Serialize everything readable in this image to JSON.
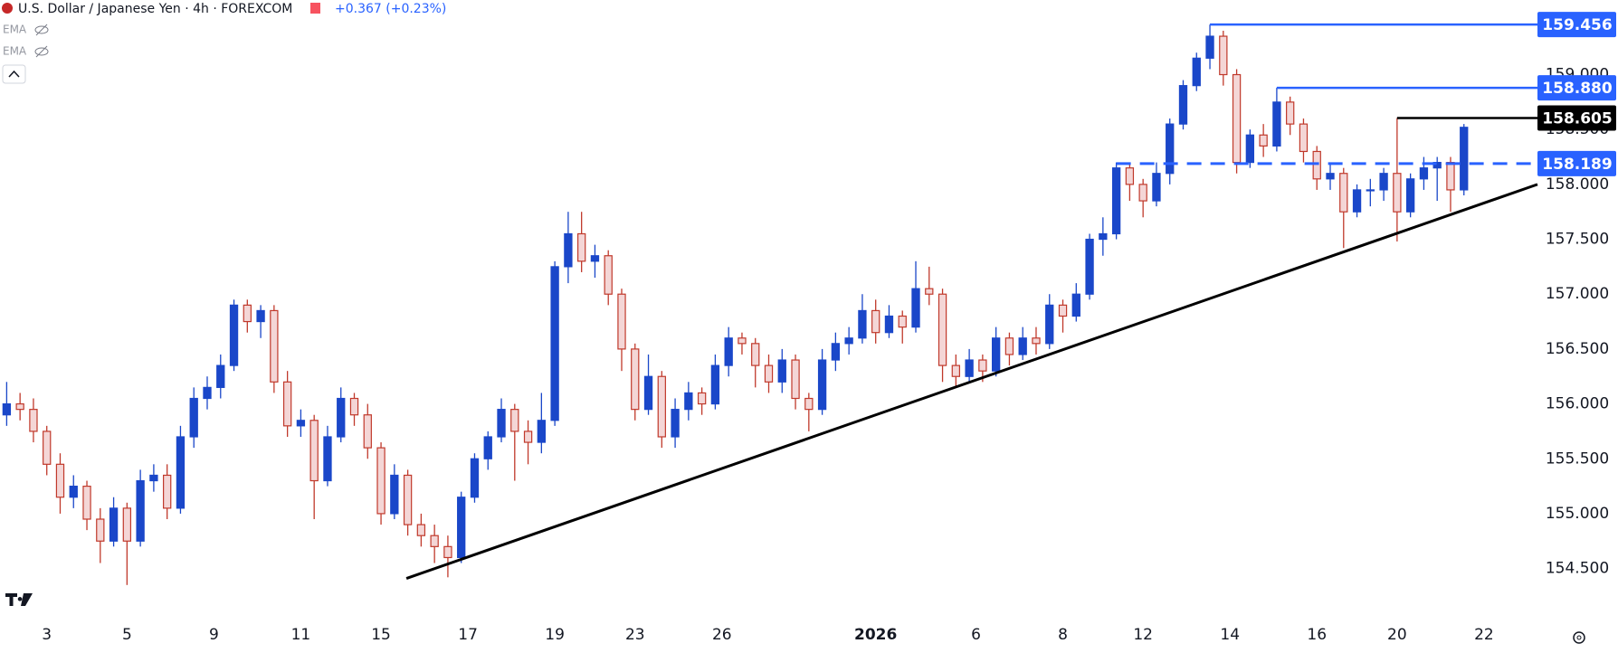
{
  "chart_data": {
    "type": "candlestick",
    "title": "U.S. Dollar / Japanese Yen · 4h · FOREXCOM",
    "change": "+0.367 (+0.23%)",
    "indicators": [
      "EMA",
      "EMA"
    ],
    "up_color": "#1a47c9",
    "down_color": "#c0392b",
    "down_fill": "#f4d6d6",
    "xlim": [
      -0.5,
      114.5
    ],
    "xticks": [
      {
        "value": 3,
        "label": "3"
      },
      {
        "value": 9,
        "label": "5"
      },
      {
        "value": 15.5,
        "label": "9"
      },
      {
        "value": 22,
        "label": "11"
      },
      {
        "value": 28,
        "label": "15"
      },
      {
        "value": 34.5,
        "label": "17"
      },
      {
        "value": 41,
        "label": "19"
      },
      {
        "value": 47,
        "label": "23"
      },
      {
        "value": 53.5,
        "label": "26"
      },
      {
        "value": 65,
        "label": "2026"
      },
      {
        "value": 72.5,
        "label": "6"
      },
      {
        "value": 79,
        "label": "8"
      },
      {
        "value": 85,
        "label": "12"
      },
      {
        "value": 91.5,
        "label": "14"
      },
      {
        "value": 98,
        "label": "16"
      },
      {
        "value": 104,
        "label": "20"
      },
      {
        "value": 110.5,
        "label": "22"
      }
    ],
    "ylim": [
      154.06,
      159.68
    ],
    "yticks": [
      {
        "value": 154.5,
        "label": "154.500"
      },
      {
        "value": 155,
        "label": "155.000"
      },
      {
        "value": 155.5,
        "label": "155.500"
      },
      {
        "value": 156,
        "label": "156.000"
      },
      {
        "value": 156.5,
        "label": "156.500"
      },
      {
        "value": 157,
        "label": "157.000"
      },
      {
        "value": 157.5,
        "label": "157.500"
      },
      {
        "value": 158,
        "label": "158.000"
      },
      {
        "value": 158.5,
        "label": "158.500"
      },
      {
        "value": 159,
        "label": "159.000"
      }
    ],
    "candles": [
      [
        155.9,
        156.2,
        155.8,
        156.0
      ],
      [
        156.0,
        156.1,
        155.85,
        155.95
      ],
      [
        155.95,
        156.05,
        155.65,
        155.75
      ],
      [
        155.75,
        155.8,
        155.35,
        155.45
      ],
      [
        155.45,
        155.55,
        155.0,
        155.15
      ],
      [
        155.15,
        155.35,
        155.05,
        155.25
      ],
      [
        155.25,
        155.3,
        154.85,
        154.95
      ],
      [
        154.95,
        155.05,
        154.55,
        154.75
      ],
      [
        154.75,
        155.15,
        154.7,
        155.05
      ],
      [
        155.05,
        155.1,
        154.35,
        154.75
      ],
      [
        154.75,
        155.4,
        154.7,
        155.3
      ],
      [
        155.3,
        155.45,
        155.2,
        155.35
      ],
      [
        155.35,
        155.45,
        154.95,
        155.05
      ],
      [
        155.05,
        155.8,
        155.0,
        155.7
      ],
      [
        155.7,
        156.15,
        155.6,
        156.05
      ],
      [
        156.05,
        156.25,
        155.95,
        156.15
      ],
      [
        156.15,
        156.45,
        156.05,
        156.35
      ],
      [
        156.35,
        156.95,
        156.3,
        156.9
      ],
      [
        156.9,
        156.95,
        156.65,
        156.75
      ],
      [
        156.75,
        156.9,
        156.6,
        156.85
      ],
      [
        156.85,
        156.9,
        156.1,
        156.2
      ],
      [
        156.2,
        156.3,
        155.7,
        155.8
      ],
      [
        155.8,
        155.95,
        155.7,
        155.85
      ],
      [
        155.85,
        155.9,
        154.95,
        155.3
      ],
      [
        155.3,
        155.8,
        155.25,
        155.7
      ],
      [
        155.7,
        156.15,
        155.65,
        156.05
      ],
      [
        156.05,
        156.1,
        155.8,
        155.9
      ],
      [
        155.9,
        156.0,
        155.5,
        155.6
      ],
      [
        155.6,
        155.65,
        154.9,
        155.0
      ],
      [
        155.0,
        155.45,
        154.95,
        155.35
      ],
      [
        155.35,
        155.4,
        154.8,
        154.9
      ],
      [
        154.9,
        155.0,
        154.7,
        154.8
      ],
      [
        154.8,
        154.9,
        154.55,
        154.7
      ],
      [
        154.7,
        154.8,
        154.42,
        154.6
      ],
      [
        154.6,
        155.2,
        154.55,
        155.15
      ],
      [
        155.15,
        155.55,
        155.1,
        155.5
      ],
      [
        155.5,
        155.75,
        155.4,
        155.7
      ],
      [
        155.7,
        156.05,
        155.65,
        155.95
      ],
      [
        155.95,
        156.0,
        155.3,
        155.75
      ],
      [
        155.75,
        155.85,
        155.45,
        155.65
      ],
      [
        155.65,
        156.1,
        155.55,
        155.85
      ],
      [
        155.85,
        157.3,
        155.8,
        157.25
      ],
      [
        157.25,
        157.75,
        157.1,
        157.55
      ],
      [
        157.55,
        157.75,
        157.2,
        157.3
      ],
      [
        157.3,
        157.45,
        157.15,
        157.35
      ],
      [
        157.35,
        157.4,
        156.9,
        157.0
      ],
      [
        157.0,
        157.05,
        156.3,
        156.5
      ],
      [
        156.5,
        156.55,
        155.85,
        155.95
      ],
      [
        155.95,
        156.45,
        155.9,
        156.25
      ],
      [
        156.25,
        156.3,
        155.6,
        155.7
      ],
      [
        155.7,
        156.05,
        155.6,
        155.95
      ],
      [
        155.95,
        156.2,
        155.85,
        156.1
      ],
      [
        156.1,
        156.15,
        155.9,
        156.0
      ],
      [
        156.0,
        156.45,
        155.95,
        156.35
      ],
      [
        156.35,
        156.7,
        156.25,
        156.6
      ],
      [
        156.6,
        156.65,
        156.45,
        156.55
      ],
      [
        156.55,
        156.6,
        156.15,
        156.35
      ],
      [
        156.35,
        156.45,
        156.1,
        156.2
      ],
      [
        156.2,
        156.5,
        156.1,
        156.4
      ],
      [
        156.4,
        156.45,
        155.95,
        156.05
      ],
      [
        156.05,
        156.1,
        155.75,
        155.95
      ],
      [
        155.95,
        156.5,
        155.9,
        156.4
      ],
      [
        156.4,
        156.65,
        156.3,
        156.55
      ],
      [
        156.55,
        156.7,
        156.45,
        156.6
      ],
      [
        156.6,
        157.0,
        156.55,
        156.85
      ],
      [
        156.85,
        156.95,
        156.55,
        156.65
      ],
      [
        156.65,
        156.9,
        156.6,
        156.8
      ],
      [
        156.8,
        156.85,
        156.55,
        156.7
      ],
      [
        156.7,
        157.3,
        156.65,
        157.05
      ],
      [
        157.05,
        157.25,
        156.9,
        157.0
      ],
      [
        157.0,
        157.05,
        156.2,
        156.35
      ],
      [
        156.35,
        156.45,
        156.15,
        156.25
      ],
      [
        156.25,
        156.5,
        156.2,
        156.4
      ],
      [
        156.4,
        156.45,
        156.2,
        156.3
      ],
      [
        156.3,
        156.7,
        156.25,
        156.6
      ],
      [
        156.6,
        156.65,
        156.35,
        156.45
      ],
      [
        156.45,
        156.7,
        156.4,
        156.6
      ],
      [
        156.6,
        156.7,
        156.45,
        156.55
      ],
      [
        156.55,
        157.0,
        156.5,
        156.9
      ],
      [
        156.9,
        156.95,
        156.65,
        156.8
      ],
      [
        156.8,
        157.1,
        156.75,
        157.0
      ],
      [
        157.0,
        157.55,
        156.95,
        157.5
      ],
      [
        157.5,
        157.7,
        157.35,
        157.55
      ],
      [
        157.55,
        158.2,
        157.5,
        158.15
      ],
      [
        158.15,
        158.2,
        157.85,
        158.0
      ],
      [
        158.0,
        158.05,
        157.7,
        157.85
      ],
      [
        157.85,
        158.2,
        157.8,
        158.1
      ],
      [
        158.1,
        158.6,
        158.0,
        158.55
      ],
      [
        158.55,
        158.95,
        158.5,
        158.9
      ],
      [
        158.9,
        159.2,
        158.85,
        159.15
      ],
      [
        159.15,
        159.456,
        159.05,
        159.35
      ],
      [
        159.35,
        159.4,
        158.9,
        159.0
      ],
      [
        159.0,
        159.05,
        158.1,
        158.2
      ],
      [
        158.2,
        158.5,
        158.15,
        158.45
      ],
      [
        158.45,
        158.55,
        158.25,
        158.35
      ],
      [
        158.35,
        158.88,
        158.3,
        158.75
      ],
      [
        158.75,
        158.8,
        158.45,
        158.55
      ],
      [
        158.55,
        158.6,
        158.2,
        158.3
      ],
      [
        158.3,
        158.35,
        157.95,
        158.05
      ],
      [
        158.05,
        158.2,
        157.95,
        158.1
      ],
      [
        158.1,
        158.15,
        157.42,
        157.75
      ],
      [
        157.75,
        158.0,
        157.7,
        157.95
      ],
      [
        157.95,
        158.05,
        157.8,
        157.95
      ],
      [
        157.95,
        158.15,
        157.85,
        158.1
      ],
      [
        158.1,
        158.605,
        157.48,
        157.75
      ],
      [
        157.75,
        158.1,
        157.7,
        158.05
      ],
      [
        158.05,
        158.25,
        157.95,
        158.15
      ],
      [
        158.15,
        158.25,
        157.85,
        158.2
      ],
      [
        158.2,
        158.25,
        157.75,
        157.95
      ],
      [
        157.95,
        158.55,
        157.9,
        158.52
      ]
    ],
    "levels": [
      {
        "value": 159.456,
        "label": "159.456",
        "start": 90,
        "color": "#2962ff",
        "dashed": false
      },
      {
        "value": 158.88,
        "label": "158.880",
        "start": 95,
        "color": "#2962ff",
        "dashed": false
      },
      {
        "value": 158.605,
        "label": "158.605",
        "start": 104,
        "color": "#000000",
        "dashed": false
      },
      {
        "value": 158.189,
        "label": "158.189",
        "start": 83,
        "color": "#2962ff",
        "dashed": true
      }
    ],
    "trendline": {
      "x": [
        29.9,
        114.5
      ],
      "y": [
        154.41,
        158.0
      ],
      "color": "#000000"
    }
  }
}
